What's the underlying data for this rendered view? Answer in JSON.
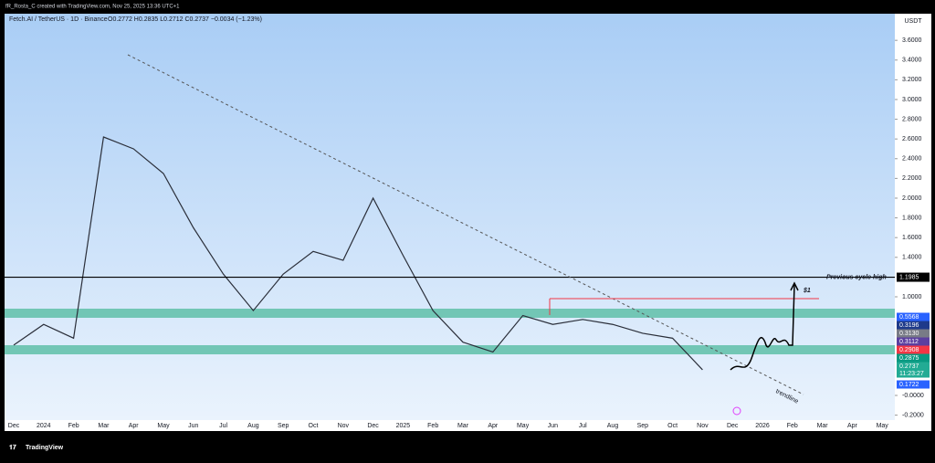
{
  "header": {
    "credit": "fR_Rosta_C created with TradingView.com, Nov 25, 2025 13:36 UTC+1",
    "symbol": "Fetch.AI / TetherUS · 1D · Binance",
    "ohlc": "O0.2772 H0.2835 L0.2712 C0.2737 −0.0034 (−1.23%)"
  },
  "chart_data": {
    "type": "line",
    "categories": [
      "Dec",
      "2024",
      "Feb",
      "Mar",
      "Apr",
      "May",
      "Jun",
      "Jul",
      "Aug",
      "Sep",
      "Oct",
      "Nov",
      "Dec",
      "2025",
      "Feb",
      "Mar",
      "Apr",
      "May",
      "Jun",
      "Jul",
      "Aug",
      "Sep",
      "Oct",
      "Nov",
      "Dec",
      "2026",
      "Feb",
      "Mar",
      "Apr",
      "May"
    ],
    "series": [
      {
        "color": "#2a2e39",
        "values": [
          0.51,
          0.72,
          0.58,
          2.62,
          2.5,
          2.25,
          1.7,
          1.23,
          0.86,
          1.23,
          1.46,
          1.37,
          2.0,
          1.42,
          0.86,
          0.54,
          0.44,
          0.81,
          0.72,
          0.77,
          0.72,
          0.63,
          0.58,
          0.26,
          null,
          null,
          null,
          null,
          null,
          null
        ]
      }
    ],
    "currency": "USDT",
    "ylim": [
      -0.25,
      3.87
    ],
    "yticks": [
      {
        "value": 3.6,
        "label": "3.6000"
      },
      {
        "value": 3.4,
        "label": "3.4000"
      },
      {
        "value": 3.2,
        "label": "3.2000"
      },
      {
        "value": 3.0,
        "label": "3.0000"
      },
      {
        "value": 2.8,
        "label": "2.8000"
      },
      {
        "value": 2.6,
        "label": "2.6000"
      },
      {
        "value": 2.4,
        "label": "2.4000"
      },
      {
        "value": 2.2,
        "label": "2.2000"
      },
      {
        "value": 2.0,
        "label": "2.0000"
      },
      {
        "value": 1.8,
        "label": "1.8000"
      },
      {
        "value": 1.6,
        "label": "1.6000"
      },
      {
        "value": 1.4,
        "label": "1.4000"
      },
      {
        "value": 1.0,
        "label": "1.0000"
      },
      {
        "value": 0,
        "label": "-0.0000"
      },
      {
        "value": -0.2,
        "label": "-0.2000"
      }
    ],
    "previous_high": {
      "value": 1.1985,
      "label": "1.1985",
      "text": "Previous cycle high"
    },
    "price_labels": [
      {
        "value": 0.5568,
        "label": "0.5568",
        "color": "#2962ff"
      },
      {
        "value": 0.3196,
        "label": "0.3196",
        "color": "#1e3a8a"
      },
      {
        "value": 0.313,
        "label": "0.3130",
        "color": "#787b86"
      },
      {
        "value": 0.3112,
        "label": "0.3112",
        "color": "#5b3fa0"
      },
      {
        "value": 0.2908,
        "label": "0.2908",
        "color": "#f23645"
      },
      {
        "value": 0.2875,
        "label": "0.2875",
        "color": "#089981"
      },
      {
        "value": 0.2737,
        "label": "0.2737",
        "color": "#22ab94"
      },
      {
        "value": 0.1722,
        "label": "0.1722",
        "color": "#2962ff"
      }
    ],
    "countdown": "11:23:27",
    "target_label": "$1",
    "trendline_label": "trendline"
  },
  "logo": "TradingView"
}
